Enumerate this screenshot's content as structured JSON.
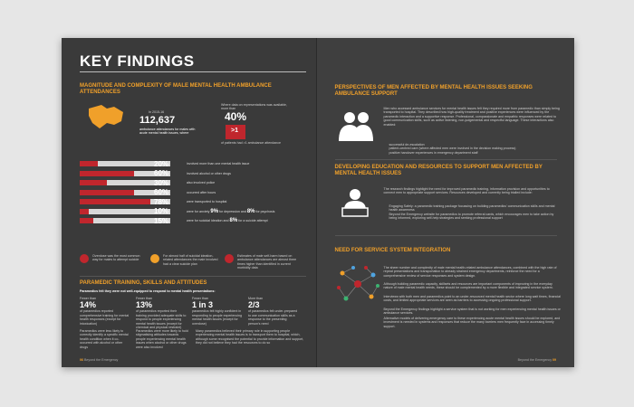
{
  "left": {
    "title": "KEY FINDINGS",
    "section1_heading": "MAGNITUDE AND COMPLEXITY OF MALE MENTAL HEALTH AMBULANCE ATTENDANCES",
    "in_year": "In 2015-16",
    "big_number": "112,637",
    "big_number_caption": "ambulance attendances for males with acute mental health issues, where",
    "where_data": "Where data on representations was available, more than",
    "pct40": "40%",
    "pct40_caption": "of patients had >1 ambulance attendance",
    "repeat_label": ">1",
    "bars": [
      {
        "pct": "20%",
        "fill": 0.2,
        "label": "involved more than one mental health issue"
      },
      {
        "pct": "60%",
        "fill": 0.6,
        "label": "involved alcohol or other drugs"
      },
      {
        "pct": "30%",
        "fill": 0.3,
        "label": "also involved police"
      },
      {
        "pct": "60%",
        "fill": 0.6,
        "label": "occurred after hours"
      },
      {
        "pct": "78%",
        "fill": 0.78,
        "label": "were transported to hospital"
      },
      {
        "pct": "10%",
        "fill": 0.1,
        "label_a": "were for anxiety",
        "pct_b": "9%",
        "label_b": "for depression and",
        "pct_c": "8%",
        "label_c": "for psychosis"
      },
      {
        "pct": "15%",
        "fill": 0.15,
        "label_a": "were for suicidal ideation and",
        "pct_b": "8%",
        "label_b": "for a suicide attempt"
      }
    ],
    "fact1": "Overdose was the most common way for males to attempt suicide",
    "fact2": "For almost half of suicidal ideation-related attendances the male involved had a clear suicide plan",
    "fact3": "Estimates of male self-harm based on ambulance attendances are almost three times higher than identified in current morbidity data",
    "section2_heading": "PARAMEDIC TRAINING, SKILLS AND ATTITUDES",
    "section2_intro": "Paramedics felt they were not well-equipped to respond to mental health presentations:",
    "stats": [
      {
        "lead": "Fewer than",
        "value": "14%",
        "text": "of paramedics reported comprehensive training for mental health responses (except for intoxication)"
      },
      {
        "lead": "Fewer than",
        "value": "13%",
        "text": "of paramedics reported their training provided adequate skills to respond to people experiencing mental health issues (except for chemical and physical restraint)"
      },
      {
        "lead": "Fewer than",
        "value": "1 in 3",
        "text": "paramedics felt highly confident in responding to people experiencing mental health issues (except for overdose)"
      },
      {
        "lead": "More than",
        "value": "2/3",
        "text": "of paramedics felt under-prepared to use communication skills as a response to the presenting person's need"
      }
    ],
    "bottom_texts": [
      "Paramedics were less likely to correctly identify a specific mental health condition when it co-occurred with alcohol or other drugs",
      "Paramedics were more likely to hold stigmatising attitudes towards people experiencing mental health issues when alcohol or other drugs were also involved",
      "Many paramedics believed their primary role in supporting people experiencing mental health issues is to transport them to hospital, which, although some recognised the potential to provide information and support, they did not believe they had the resources to do so"
    ],
    "footer": "Beyond the Emergency"
  },
  "right": {
    "section1_heading": "PERSPECTIVES OF MEN AFFECTED BY MENTAL HEALTH ISSUES SEEKING AMBULANCE SUPPORT",
    "section1_body": "Men who accessed ambulance services for mental health issues felt they required more from paramedic than simply being transported to hospital. They described how high-quality treatment and positive experiences were influenced by the paramedic interaction and a supportive response. Professional, compassionate and empathic responses were related to good communication skills, such as active listening, non-judgemental and respectful language. These interactions also enabled:",
    "section1_bullets": [
      "successful de-escalation",
      "patient-centred care (where affected men were involved in the decision making process)",
      "positive handover experiences in emergency department staff"
    ],
    "section2_heading": "DEVELOPING EDUCATION AND RESOURCES TO SUPPORT MEN AFFECTED BY MENTAL HEALTH ISSUES",
    "section2_body": "The research findings highlight the need for improved paramedic training, information provision and opportunities to connect men to appropriate support services. Resources developed and currently being trialled include:",
    "section2_bullets": [
      "Engaging Safely: a paramedic training package focussing on building paramedics' communication skills and mental health awareness",
      "Beyond the Emergency website for paramedics to promote referral cards, which encourages men to take action by being informed, exploring self-help strategies and seeking professional support"
    ],
    "section3_heading": "NEED FOR SERVICE SYSTEM INTEGRATION",
    "section3_body": "The sheer number and complexity of male mental health-related ambulance attendances, combined with the high rate of repeat presentations and transportation to already strained emergency departments, reinforce the need for a comprehensive review of service responses and system design.",
    "section3_body2": "Although building paramedic capacity, skillsets and resources are important components of improving in the everyday nature of male mental health needs, these should be complemented by a more flexible and integrated service system.",
    "section3_body3": "Interviews with both men and paramedics point to an under-resourced mental health sector where long wait times, financial costs, and limited appropriate services are seen as barriers to accessing ongoing professional support.",
    "section3_body4": "Beyond the Emergency findings highlight a service system that is not working for men experiencing mental health issues or ambulance services.",
    "section3_body5": "Alternative models of delivering emergency care to these experiencing acute mental health issues should be explored, and investment is needed in systems and responses that reduce the many barriers men frequently face in accessing timely support.",
    "footer": "Beyond the Emergency"
  },
  "colors": {
    "accent": "#f0a02a",
    "red": "#c0262d",
    "bg": "#3b3b3b"
  }
}
